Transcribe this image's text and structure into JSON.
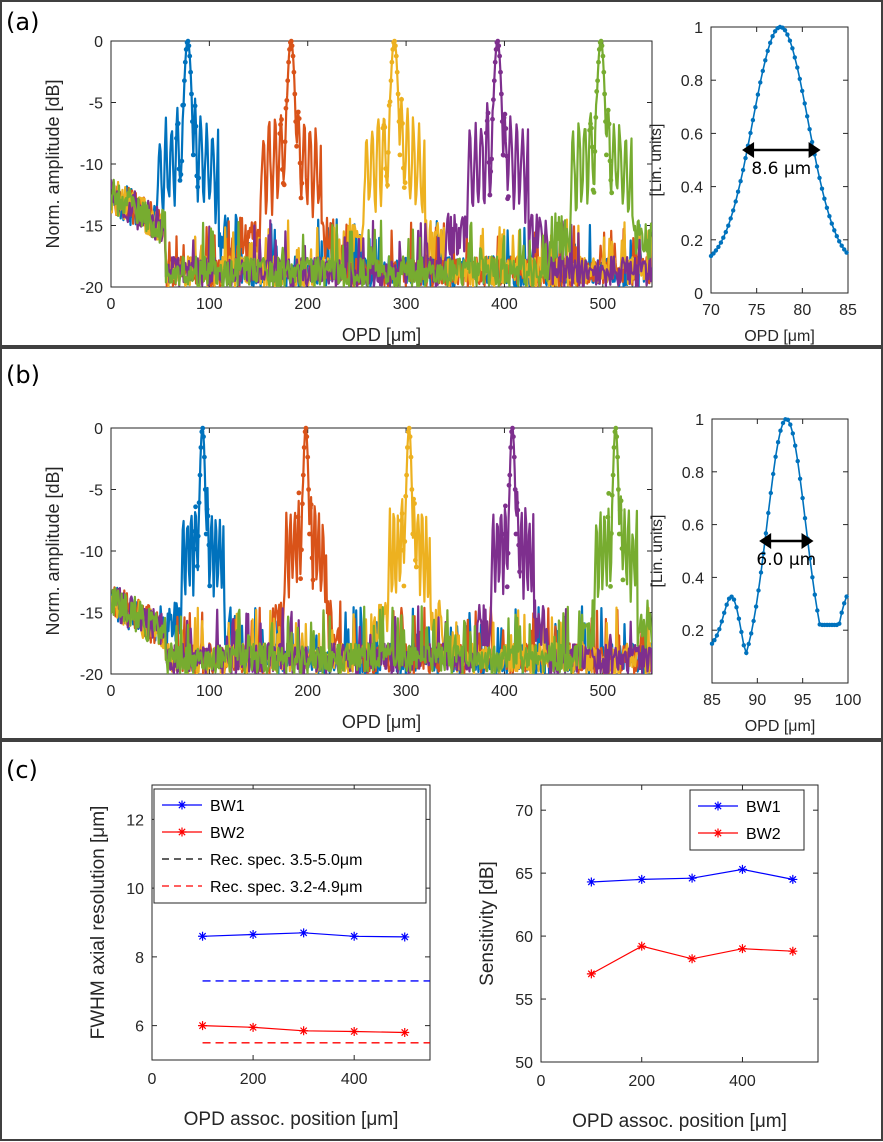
{
  "figure": {
    "panels": [
      "(a)",
      "(b)",
      "(c)"
    ],
    "colors": {
      "blue": "#0072bd",
      "orange": "#d95319",
      "yellow": "#edb120",
      "purple": "#7e2f8e",
      "green": "#77ac30",
      "bw1": "#0000ff",
      "bw2": "#ff0000",
      "black": "#000000"
    }
  },
  "chart_data": [
    {
      "id": "a_main",
      "type": "line",
      "panel": "(a)",
      "xlabel": "OPD [μm]",
      "ylabel": "Norm. amplitude [dB]",
      "xlim": [
        0,
        550
      ],
      "ylim": [
        -20,
        0
      ],
      "xticks": [
        0,
        100,
        200,
        300,
        400,
        500
      ],
      "yticks": [
        0,
        -5,
        -10,
        -15,
        -20
      ],
      "peaks": [
        78,
        183,
        288,
        393,
        498
      ],
      "peak_width_um": 8.6,
      "series_colors": [
        "blue",
        "orange",
        "yellow",
        "purple",
        "green"
      ]
    },
    {
      "id": "a_inset",
      "type": "line",
      "panel": "(a)",
      "xlabel": "OPD [μm]",
      "ylabel": "[Lin. units]",
      "xlim": [
        70,
        85
      ],
      "ylim": [
        0,
        1
      ],
      "xticks": [
        70,
        75,
        80,
        85
      ],
      "yticks": [
        0,
        0.2,
        0.4,
        0.6,
        0.8,
        1
      ],
      "center": 77.6,
      "fwhm_label": "8.6 μm",
      "fwhm_range": [
        73.4,
        82.0
      ],
      "fwhm_y": 0.5
    },
    {
      "id": "b_main",
      "type": "line",
      "panel": "(b)",
      "xlabel": "OPD [μm]",
      "ylabel": "Norm. amplitude [dB]",
      "xlim": [
        0,
        550
      ],
      "ylim": [
        -20,
        0
      ],
      "xticks": [
        0,
        100,
        200,
        300,
        400,
        500
      ],
      "yticks": [
        0,
        -5,
        -10,
        -15,
        -20
      ],
      "peaks": [
        93,
        198,
        303,
        408,
        513
      ],
      "peak_width_um": 6.0,
      "series_colors": [
        "blue",
        "orange",
        "yellow",
        "purple",
        "green"
      ]
    },
    {
      "id": "b_inset",
      "type": "line",
      "panel": "(b)",
      "xlabel": "OPD [μm]",
      "ylabel": "[Lin. units]",
      "xlim": [
        85,
        100
      ],
      "ylim": [
        0,
        1
      ],
      "xticks": [
        85,
        90,
        95,
        100
      ],
      "yticks": [
        0.2,
        0.4,
        0.6,
        0.8,
        1
      ],
      "center": 93.2,
      "fwhm_label": "6.0 μm",
      "fwhm_range": [
        90.2,
        96.2
      ],
      "fwhm_y": 0.5
    },
    {
      "id": "c_fwhm",
      "type": "line",
      "panel": "(c)",
      "xlabel": "OPD assoc. position [μm]",
      "ylabel": "FWHM axial resolution [μm]",
      "xlim": [
        0,
        550
      ],
      "ylim": [
        5,
        13
      ],
      "xticks": [
        0,
        200,
        400
      ],
      "yticks": [
        6,
        8,
        10,
        12
      ],
      "series": [
        {
          "name": "BW1",
          "color": "bw1",
          "style": "solid",
          "marker": "*",
          "x": [
            100,
            200,
            300,
            400,
            500
          ],
          "values": [
            8.6,
            8.65,
            8.7,
            8.6,
            8.58
          ]
        },
        {
          "name": "BW2",
          "color": "bw2",
          "style": "solid",
          "marker": "*",
          "x": [
            100,
            200,
            300,
            400,
            500
          ],
          "values": [
            6.0,
            5.95,
            5.85,
            5.83,
            5.8
          ]
        },
        {
          "name": "Rec. spec. 3.5-5.0μm",
          "color": "black",
          "style": "dashed",
          "marker": "",
          "x": [],
          "values": []
        },
        {
          "name": "Rec. spec. 3.2-4.9μm",
          "color": "bw2",
          "style": "dashed",
          "marker": "",
          "x": [],
          "values": []
        }
      ],
      "reference_lines": [
        {
          "color": "bw1",
          "x": [
            100,
            550
          ],
          "values": [
            7.3,
            7.3
          ]
        },
        {
          "color": "bw2",
          "x": [
            100,
            550
          ],
          "values": [
            5.5,
            5.5
          ]
        }
      ],
      "legend_position": "top-left"
    },
    {
      "id": "c_sens",
      "type": "line",
      "panel": "(c)",
      "xlabel": "OPD assoc. position [μm]",
      "ylabel": "Sensitivity [dB]",
      "xlim": [
        0,
        550
      ],
      "ylim": [
        50,
        72
      ],
      "xticks": [
        0,
        200,
        400
      ],
      "yticks": [
        50,
        55,
        60,
        65,
        70
      ],
      "series": [
        {
          "name": "BW1",
          "color": "bw1",
          "style": "solid",
          "marker": "*",
          "x": [
            100,
            200,
            300,
            400,
            500
          ],
          "values": [
            64.3,
            64.5,
            64.6,
            65.3,
            64.5
          ]
        },
        {
          "name": "BW2",
          "color": "bw2",
          "style": "solid",
          "marker": "*",
          "x": [
            100,
            200,
            300,
            400,
            500
          ],
          "values": [
            57.0,
            59.2,
            58.2,
            59.0,
            58.8
          ]
        }
      ],
      "legend_position": "top-right"
    }
  ]
}
